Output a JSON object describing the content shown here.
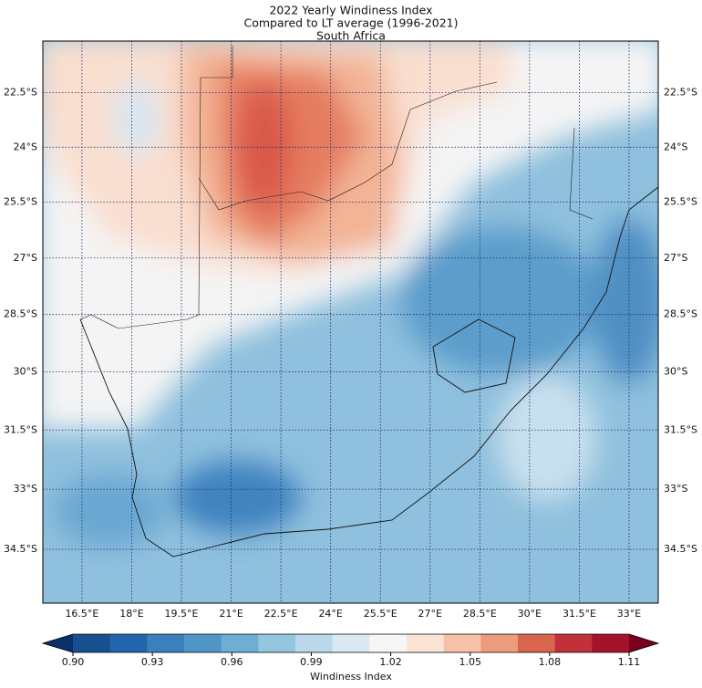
{
  "map": {
    "title": [
      "2022 Yearly Windiness Index",
      "Compared to LT average (1996-2021)",
      "South Africa"
    ],
    "xlim": [
      15.32,
      33.88
    ],
    "ylim": [
      -35.82,
      -21.06
    ],
    "lon_ticks": [
      {
        "value": 16.5,
        "label": "16.5°E"
      },
      {
        "value": 18,
        "label": "18°E"
      },
      {
        "value": 19.5,
        "label": "19.5°E"
      },
      {
        "value": 21,
        "label": "21°E"
      },
      {
        "value": 22.5,
        "label": "22.5°E"
      },
      {
        "value": 24,
        "label": "24°E"
      },
      {
        "value": 25.5,
        "label": "25.5°E"
      },
      {
        "value": 27,
        "label": "27°E"
      },
      {
        "value": 28.5,
        "label": "28.5°E"
      },
      {
        "value": 30,
        "label": "30°E"
      },
      {
        "value": 31.5,
        "label": "31.5°E"
      },
      {
        "value": 33,
        "label": "33°E"
      }
    ],
    "lat_ticks": [
      {
        "value": -22.5,
        "label": "22.5°S"
      },
      {
        "value": -24,
        "label": "24°S"
      },
      {
        "value": -25.5,
        "label": "25.5°S"
      },
      {
        "value": -27,
        "label": "27°S"
      },
      {
        "value": -28.5,
        "label": "28.5°S"
      },
      {
        "value": -30,
        "label": "30°S"
      },
      {
        "value": -31.5,
        "label": "31.5°S"
      },
      {
        "value": -33,
        "label": "33°S"
      },
      {
        "value": -34.5,
        "label": "34.5°S"
      }
    ],
    "colorbar": {
      "label": "Windiness Index",
      "lim": [
        0.9,
        1.11
      ],
      "ticks": [
        {
          "value": 0.9,
          "label": "0.90"
        },
        0.93,
        0.96,
        0.99,
        1.02,
        1.05,
        1.08,
        1.11
      ],
      "under_color": "#08306b",
      "over_color": "#7a0020",
      "colors": [
        "#16508f",
        "#2166ac",
        "#3b80bd",
        "#4f96c7",
        "#6faed4",
        "#94c6df",
        "#b9d8e9",
        "#dbe9f3",
        "#f7f6f4",
        "#fbe3d6",
        "#f6c2a7",
        "#ec9b7b",
        "#d9654f",
        "#c2303a",
        "#a4122c"
      ]
    }
  }
}
